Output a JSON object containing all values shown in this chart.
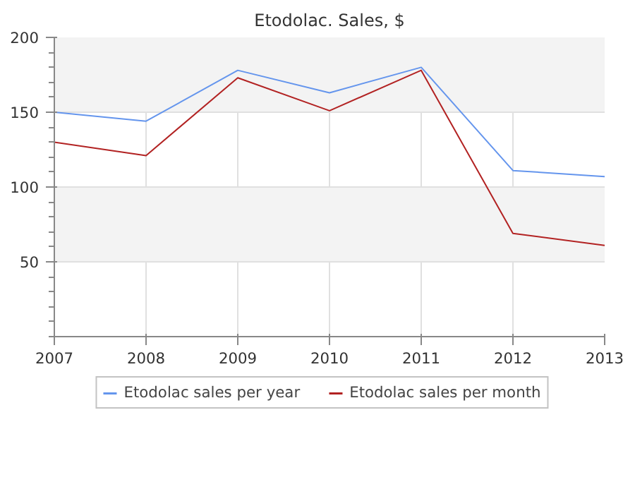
{
  "chart_data": {
    "type": "line",
    "title": "Etodolac. Sales, $",
    "x": [
      2007,
      2008,
      2009,
      2010,
      2011,
      2012,
      2013
    ],
    "series": [
      {
        "name": "Etodolac sales per year",
        "color": "#6495ed",
        "values": [
          150,
          144,
          178,
          163,
          180,
          111,
          107
        ]
      },
      {
        "name": "Etodolac sales per month",
        "color": "#b22222",
        "values": [
          130,
          121,
          173,
          151,
          178,
          69,
          61
        ]
      }
    ],
    "xlim": [
      2007,
      2013
    ],
    "xticks": [
      2007,
      2008,
      2009,
      2010,
      2011,
      2012,
      2013
    ],
    "ylim": [
      0,
      200
    ],
    "yticks": [
      50,
      100,
      150,
      200
    ],
    "grid": true,
    "legend": "bottom",
    "marker": "none",
    "line_style": "solid"
  }
}
